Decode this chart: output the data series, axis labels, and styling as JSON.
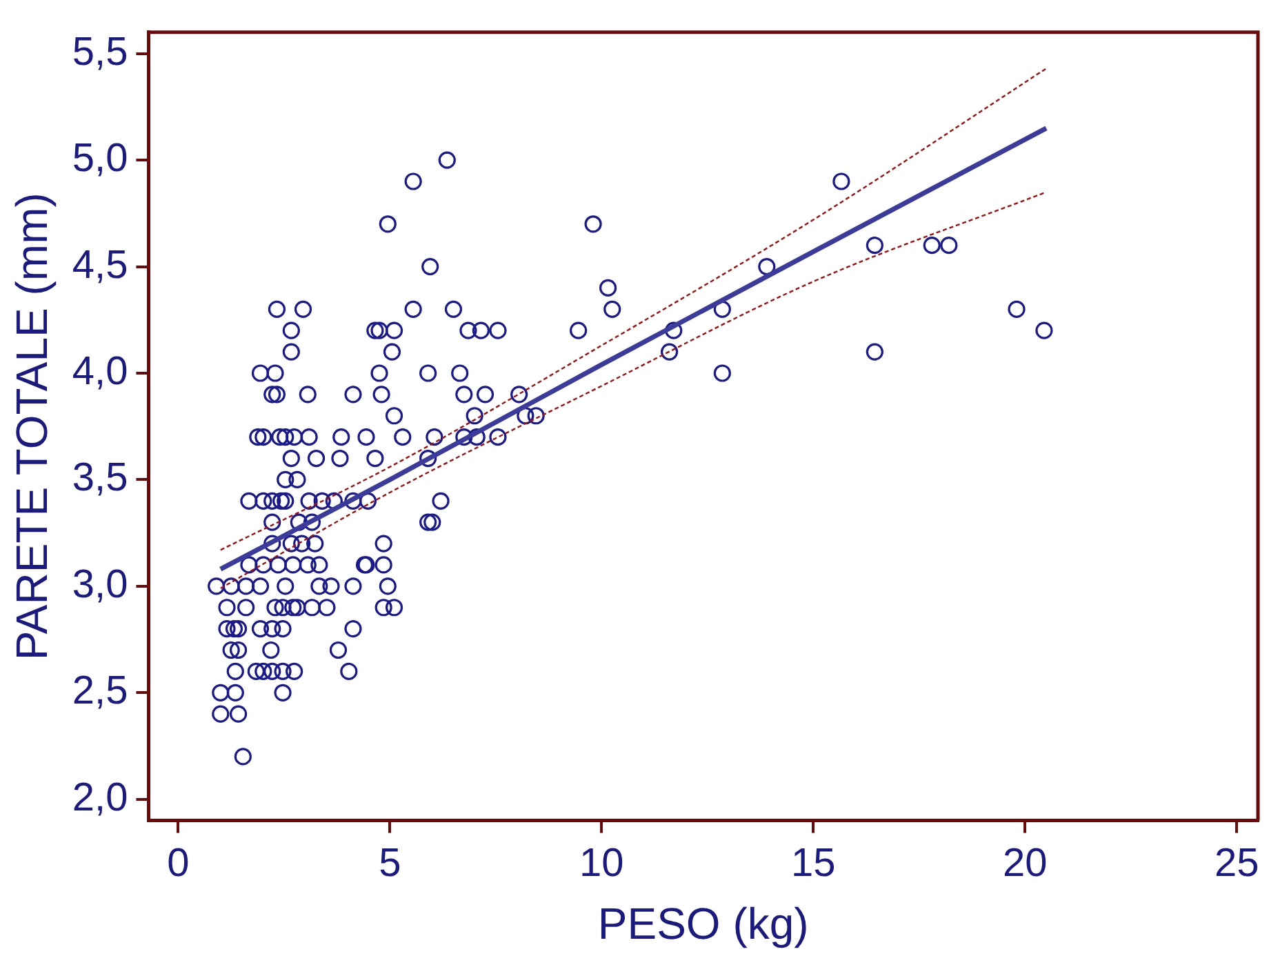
{
  "chart_data": {
    "type": "scatter",
    "xlabel": "PESO (kg)",
    "ylabel": "PARETE TOTALE (mm)",
    "xlim": [
      -0.7,
      25.5
    ],
    "ylim": [
      1.9,
      5.6
    ],
    "xticks": [
      0,
      5,
      10,
      15,
      20,
      25
    ],
    "yticks": [
      {
        "value": 2,
        "label": "2,0"
      },
      {
        "value": 2.5,
        "label": "2,5"
      },
      {
        "value": 3,
        "label": "3,0"
      },
      {
        "value": 3.5,
        "label": "3,5"
      },
      {
        "value": 4,
        "label": "4,0"
      },
      {
        "value": 4.5,
        "label": "4,5"
      },
      {
        "value": 5,
        "label": "5,0"
      },
      {
        "value": 5.5,
        "label": "5,5"
      }
    ],
    "grid": false,
    "legend": false,
    "series": [
      {
        "marker": "circle",
        "color": "#1a1a8c",
        "x": [
          15.66,
          11.6,
          11.7,
          12.85,
          12.85,
          13.9,
          16.45,
          16.45,
          17.8,
          18.2,
          19.8,
          20.45,
          9.8,
          10.15,
          10.25,
          9.45,
          6.35,
          5.55,
          4.95,
          5.95,
          5.55,
          6.5,
          4.65,
          4.75,
          5.1,
          6.85,
          7.15,
          7.55,
          5.05,
          4.75,
          5.9,
          6.65,
          8.05,
          4.8,
          6.75,
          7.25,
          5.1,
          7.0,
          8.2,
          8.45,
          5.3,
          6.05,
          6.75,
          7.05,
          7.55,
          5.9,
          6.2,
          5.9,
          6.0,
          4.85,
          4.4,
          4.85,
          4.95,
          4.85,
          5.1,
          2.33,
          2.95,
          2.67,
          2.67,
          1.94,
          2.29,
          2.22,
          2.33,
          3.06,
          4.13,
          1.88,
          2.01,
          2.4,
          2.53,
          2.74,
          3.09,
          3.85,
          4.44,
          2.67,
          3.26,
          3.82,
          4.65,
          2.53,
          2.81,
          1.67,
          2.01,
          2.22,
          2.43,
          2.53,
          3.09,
          3.4,
          3.68,
          4.13,
          4.48,
          2.22,
          2.85,
          3.16,
          2.22,
          2.67,
          2.92,
          3.23,
          1.67,
          2.01,
          2.36,
          2.71,
          3.06,
          3.33,
          4.44,
          0.9,
          1.25,
          1.6,
          1.94,
          2.53,
          3.33,
          3.61,
          4.13,
          1.15,
          1.6,
          2.29,
          2.47,
          2.71,
          2.81,
          3.16,
          3.51,
          1.15,
          1.32,
          1.42,
          1.94,
          2.22,
          2.47,
          4.13,
          1.25,
          1.42,
          2.19,
          3.78,
          1.35,
          1.84,
          2.01,
          2.22,
          2.47,
          2.74,
          4.03,
          1.0,
          1.35,
          2.47,
          1.0,
          1.42,
          1.53
        ],
        "values": [
          4.9,
          4.1,
          4.2,
          4.3,
          4.0,
          4.5,
          4.6,
          4.1,
          4.6,
          4.6,
          4.3,
          4.2,
          4.7,
          4.4,
          4.3,
          4.2,
          5.0,
          4.9,
          4.7,
          4.5,
          4.3,
          4.3,
          4.2,
          4.2,
          4.2,
          4.2,
          4.2,
          4.2,
          4.1,
          4.0,
          4.0,
          4.0,
          3.9,
          3.9,
          3.9,
          3.9,
          3.8,
          3.8,
          3.8,
          3.8,
          3.7,
          3.7,
          3.7,
          3.7,
          3.7,
          3.6,
          3.4,
          3.3,
          3.3,
          3.2,
          3.1,
          3.1,
          3.0,
          2.9,
          2.9,
          4.3,
          4.3,
          4.2,
          4.1,
          4.0,
          4.0,
          3.9,
          3.9,
          3.9,
          3.9,
          3.7,
          3.7,
          3.7,
          3.7,
          3.7,
          3.7,
          3.7,
          3.7,
          3.6,
          3.6,
          3.6,
          3.6,
          3.5,
          3.5,
          3.4,
          3.4,
          3.4,
          3.4,
          3.4,
          3.4,
          3.4,
          3.4,
          3.4,
          3.4,
          3.3,
          3.3,
          3.3,
          3.2,
          3.2,
          3.2,
          3.2,
          3.1,
          3.1,
          3.1,
          3.1,
          3.1,
          3.1,
          3.1,
          3.0,
          3.0,
          3.0,
          3.0,
          3.0,
          3.0,
          3.0,
          3.0,
          2.9,
          2.9,
          2.9,
          2.9,
          2.9,
          2.9,
          2.9,
          2.9,
          2.8,
          2.8,
          2.8,
          2.8,
          2.8,
          2.8,
          2.8,
          2.7,
          2.7,
          2.7,
          2.7,
          2.6,
          2.6,
          2.6,
          2.6,
          2.6,
          2.6,
          2.6,
          2.5,
          2.5,
          2.5,
          2.4,
          2.4,
          2.2
        ]
      },
      {
        "type": "line",
        "marker": "none",
        "line_style": "solid",
        "color": "#3b3b9c",
        "x": [
          1,
          5,
          10,
          15,
          20.5
        ],
        "values": [
          3.08,
          3.5,
          4.04,
          4.57,
          5.15
        ]
      },
      {
        "type": "line",
        "marker": "none",
        "line_style": "dashed",
        "color": "#a01010",
        "x": [
          1,
          5,
          10,
          15,
          20.5
        ],
        "values": [
          2.99,
          3.44,
          3.94,
          4.43,
          4.85
        ]
      },
      {
        "type": "line",
        "marker": "none",
        "line_style": "dashed",
        "color": "#a01010",
        "x": [
          1,
          5,
          10,
          15,
          20.5
        ],
        "values": [
          3.17,
          3.56,
          4.13,
          4.72,
          5.43
        ]
      }
    ]
  }
}
